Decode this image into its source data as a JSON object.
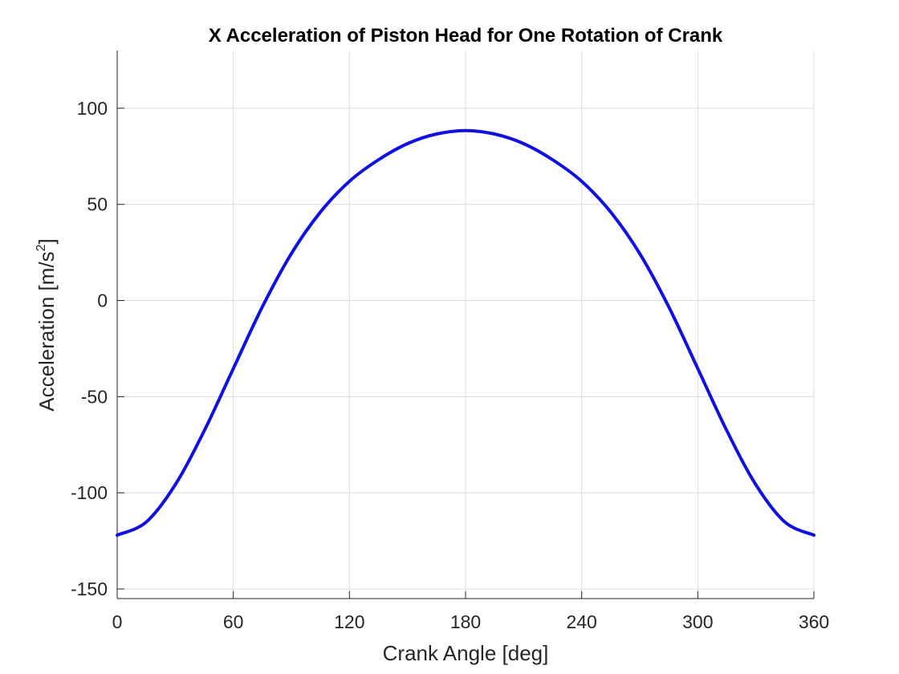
{
  "chart_data": {
    "type": "line",
    "title": "X Acceleration of Piston Head for One Rotation of Crank",
    "xlabel": "Crank Angle [deg]",
    "ylabel_main": "Acceleration [m/s",
    "ylabel_sup": "2",
    "ylabel_end": "]",
    "xlim": [
      0,
      360
    ],
    "ylim": [
      -155,
      130
    ],
    "xticks": [
      0,
      60,
      120,
      180,
      240,
      300,
      360
    ],
    "yticks": [
      -150,
      -100,
      -50,
      0,
      50,
      100
    ],
    "grid": true,
    "series": [
      {
        "color": "#1010e0",
        "x": [
          0,
          15,
          30,
          45,
          60,
          75,
          90,
          105,
          120,
          135,
          150,
          165,
          180,
          195,
          210,
          225,
          240,
          255,
          270,
          285,
          300,
          315,
          330,
          345,
          360
        ],
        "y": [
          -122,
          -115.2,
          -95.8,
          -67.7,
          -35.4,
          -3.3,
          24.4,
          46,
          62,
          73.2,
          81.6,
          86.6,
          88.4,
          86.6,
          81.6,
          73.2,
          62,
          46,
          24.4,
          -3.3,
          -35.4,
          -67.7,
          -95.8,
          -115.2,
          -122
        ]
      }
    ]
  }
}
